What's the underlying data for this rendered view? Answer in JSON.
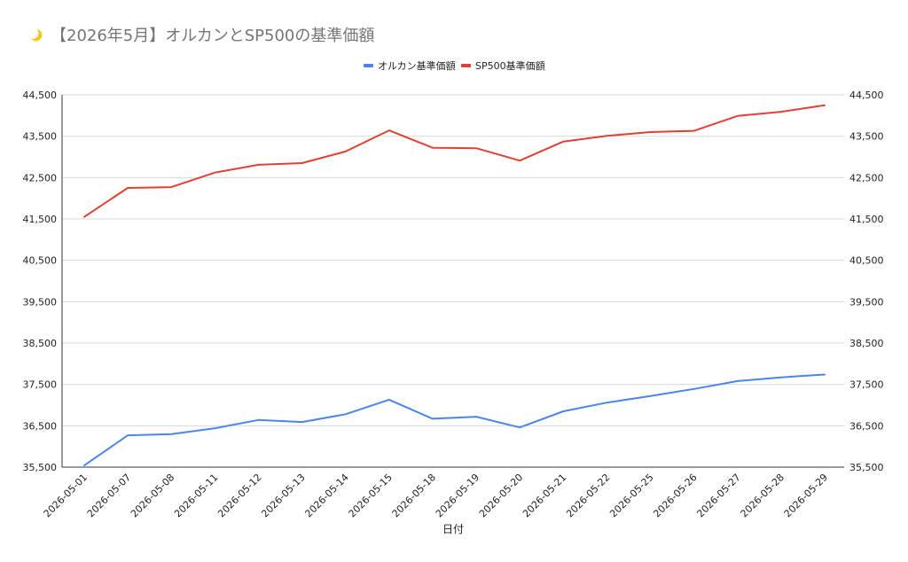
{
  "title": {
    "icon": "crescent-moon-icon",
    "text": "【2026年5月】オルカンとSP500の基準価額"
  },
  "chart_data": {
    "type": "line",
    "title": "【2026年5月】オルカンとSP500の基準価額",
    "xlabel": "日付",
    "ylabel": "",
    "ylim": [
      35500,
      44500
    ],
    "y_ticks": [
      "35,500",
      "36,500",
      "37,500",
      "38,500",
      "39,500",
      "40,500",
      "41,500",
      "42,500",
      "43,500",
      "44,500"
    ],
    "y_tick_values": [
      35500,
      36500,
      37500,
      38500,
      39500,
      40500,
      41500,
      42500,
      43500,
      44500
    ],
    "dual_y_axis_same_scale": true,
    "grid": true,
    "legend_position": "top",
    "categories": [
      "2026-05-01",
      "2026-05-07",
      "2026-05-08",
      "2026-05-11",
      "2026-05-12",
      "2026-05-13",
      "2026-05-14",
      "2026-05-15",
      "2026-05-18",
      "2026-05-19",
      "2026-05-20",
      "2026-05-21",
      "2026-05-22",
      "2026-05-25",
      "2026-05-26",
      "2026-05-27",
      "2026-05-28",
      "2026-05-29"
    ],
    "series": [
      {
        "name": "オルカン基準価額",
        "color": "#4a86e8",
        "values": [
          35540,
          36270,
          36300,
          36440,
          36640,
          36590,
          36780,
          37130,
          36670,
          36720,
          36460,
          36850,
          37060,
          37220,
          37390,
          37580,
          37670,
          37740
        ]
      },
      {
        "name": "SP500基準価額",
        "color": "#e04133",
        "values": [
          41550,
          42250,
          42270,
          42620,
          42810,
          42850,
          43130,
          43640,
          43220,
          43210,
          42910,
          43370,
          43510,
          43600,
          43630,
          43990,
          44090,
          44250
        ]
      }
    ]
  }
}
